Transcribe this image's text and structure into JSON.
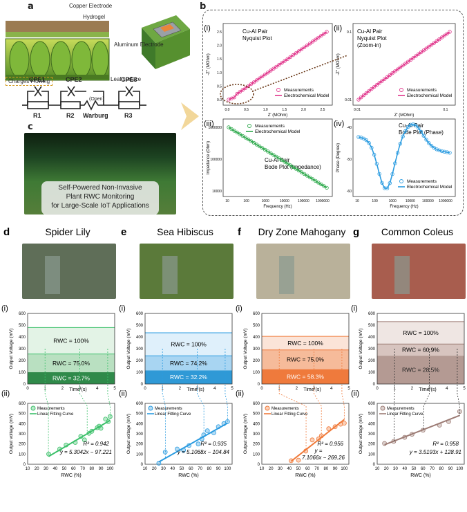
{
  "panel_a": {
    "letter": "a",
    "labels": {
      "copper_electrode": "Copper Electrode",
      "hydrogel": "Hydrogel",
      "aluminum_electrode": "Aluminum Electrode",
      "leaf_surface": "Leaf surface",
      "charges_flowing": "Charges Flowing"
    },
    "circuit": {
      "cpe1": "CPE1",
      "cpe2": "CPE2",
      "cpe3": "CPE3",
      "r1": "R1",
      "r2": "R2",
      "warburg": "Warburg",
      "open": "(Open)",
      "r3": "R3"
    }
  },
  "panel_c": {
    "letter": "c",
    "caption_lines": [
      "Self-Powered Non-Invasive",
      "Plant RWC Monitoring",
      "for Large-Scale IoT Applications"
    ]
  },
  "panel_b": {
    "letter": "b",
    "subpanels": [
      {
        "id": "i",
        "title_lines": [
          "Cu-Al Pair",
          "Nyquist Plot"
        ],
        "xlabel": "Z' (MOhm)",
        "ylabel": "-Z'' (MOhm)",
        "xticks": [
          "0.0",
          "0.5",
          "1.0",
          "1.5",
          "2.0",
          "2.5"
        ],
        "yticks": [
          "0.0",
          "0.5",
          "1.0",
          "1.5",
          "2.0",
          "2.5"
        ],
        "legend": [
          "Measurements",
          "Electrochemical Model"
        ],
        "color": "#e0338a"
      },
      {
        "id": "ii",
        "title_lines": [
          "Cu-Al Pair",
          "Nyquist Plot",
          "(Zoom-in)"
        ],
        "xlabel": "Z' (MOhm)",
        "ylabel": "-Z'' (MOhm)",
        "xticks": [
          "0.01",
          "0.1"
        ],
        "yticks": [
          "0.01",
          "0.1"
        ],
        "legend": [
          "Measurements",
          "Electrochemical Model"
        ],
        "color": "#e0338a"
      },
      {
        "id": "iii",
        "title_lines": [
          "Cu-Al Pair",
          "Bode Plot (Impedance)"
        ],
        "xlabel": "Frequency (Hz)",
        "ylabel": "Impedance (Ohm)",
        "xticks": [
          "10",
          "100",
          "1000",
          "10000",
          "100000",
          "1000000"
        ],
        "yticks": [
          "10000",
          "100000",
          "1000000"
        ],
        "legend": [
          "Measurements",
          "Electrochemical Model"
        ],
        "color": "#2ba84a"
      },
      {
        "id": "iv",
        "title_lines": [
          "Cu-Al Pair",
          "Bode Plot (Phase)"
        ],
        "xlabel": "Frequency (Hz)",
        "ylabel": "Phase (Degree)",
        "xticks": [
          "10",
          "100",
          "1000",
          "10000",
          "100000",
          "1000000"
        ],
        "yticks": [
          "-60",
          "-50",
          "-40"
        ],
        "legend": [
          "Measurements",
          "Electrochemical Model"
        ],
        "color": "#2a9be0"
      }
    ]
  },
  "plants": [
    {
      "letter": "d",
      "name": "Spider Lily",
      "top_shades": [
        "#e3f3e6",
        "#b9e0c1",
        "#2f8a4a"
      ],
      "main_color": "#3cc06a",
      "rwc_levels": [
        "RWC = 100%",
        "RWC = 75.0%",
        "RWC = 32.7%"
      ],
      "level_mv": [
        480,
        255,
        100
      ],
      "r2": "R² = 0.942",
      "equation": "y = 5.3042x − 97.221",
      "points": [
        [
          33,
          100
        ],
        [
          45,
          150
        ],
        [
          52,
          190
        ],
        [
          62,
          215
        ],
        [
          68,
          275
        ],
        [
          72,
          240
        ],
        [
          77,
          305
        ],
        [
          80,
          325
        ],
        [
          86,
          360
        ],
        [
          88,
          375
        ],
        [
          90,
          355
        ],
        [
          95,
          445
        ],
        [
          98,
          420
        ],
        [
          100,
          470
        ]
      ],
      "fit": [
        5.3042,
        -97.221
      ]
    },
    {
      "letter": "e",
      "name": "Sea Hibiscus",
      "top_shades": [
        "#dff0fb",
        "#a8d5f2",
        "#2f99d6"
      ],
      "main_color": "#2a9be0",
      "rwc_levels": [
        "RWC = 100%",
        "RWC = 74.2%",
        "RWC = 32.2%"
      ],
      "level_mv": [
        435,
        240,
        115
      ],
      "r2": "R² = 0.935",
      "equation": "y = 5.1068x − 104.84",
      "points": [
        [
          25,
          10
        ],
        [
          32,
          120
        ],
        [
          45,
          150
        ],
        [
          52,
          140
        ],
        [
          58,
          185
        ],
        [
          68,
          200
        ],
        [
          72,
          250
        ],
        [
          74,
          290
        ],
        [
          78,
          330
        ],
        [
          85,
          310
        ],
        [
          90,
          370
        ],
        [
          96,
          400
        ],
        [
          100,
          420
        ]
      ],
      "fit": [
        5.1068,
        -104.84
      ]
    },
    {
      "letter": "f",
      "name": "Dry Zone Mahogany",
      "top_shades": [
        "#fbe4d8",
        "#f6bb9a",
        "#ef7a3c"
      ],
      "main_color": "#f07a3a",
      "rwc_levels": [
        "RWC = 100%",
        "RWC = 75.0%",
        "RWC = 58.3%"
      ],
      "level_mv": [
        405,
        290,
        125
      ],
      "r2": "R² = 0.956",
      "equation_lines": [
        "y =",
        "7.1066x − 269.26"
      ],
      "points": [
        [
          42,
          35
        ],
        [
          50,
          40
        ],
        [
          58,
          130
        ],
        [
          65,
          240
        ],
        [
          72,
          250
        ],
        [
          75,
          280
        ],
        [
          83,
          350
        ],
        [
          90,
          370
        ],
        [
          96,
          395
        ],
        [
          100,
          405
        ]
      ],
      "fit": [
        7.1066,
        -269.26
      ]
    },
    {
      "letter": "g",
      "name": "Common Coleus",
      "top_shades": [
        "#efe6e3",
        "#d7c4bf",
        "#b49a93"
      ],
      "main_color": "#9c7b74",
      "rwc_levels": [
        "RWC = 100%",
        "RWC = 60.9%",
        "RWC = 28.5%"
      ],
      "level_mv": [
        530,
        340,
        240
      ],
      "r2": "R² = 0.958",
      "equation": "y = 3.5193x + 128.91",
      "points": [
        [
          18,
          205
        ],
        [
          28,
          225
        ],
        [
          40,
          265
        ],
        [
          48,
          295
        ],
        [
          60,
          335
        ],
        [
          78,
          385
        ],
        [
          88,
          420
        ],
        [
          100,
          520
        ]
      ],
      "fit": [
        3.5193,
        128.91
      ]
    }
  ],
  "common": {
    "sub_i": "(i)",
    "sub_ii": "(ii)",
    "top_ylabel": "Output Voltage (mV)",
    "top_xlabel": "Time (s)",
    "bot_ylabel": "Output voltage (mV)",
    "bot_xlabel": "RWC (%)",
    "legend_measure": "Measurements",
    "legend_fit": "Linear Fitting Curve",
    "yticks": [
      "0",
      "100",
      "200",
      "300",
      "400",
      "500",
      "600"
    ],
    "time_ticks": [
      "0",
      "1",
      "2",
      "3",
      "4",
      "5"
    ],
    "rwc_ticks": [
      "10",
      "20",
      "30",
      "40",
      "50",
      "60",
      "70",
      "80",
      "90",
      "100"
    ],
    "phase_ticks": [
      "0",
      "1",
      "2",
      "3",
      "4",
      "5"
    ]
  }
}
